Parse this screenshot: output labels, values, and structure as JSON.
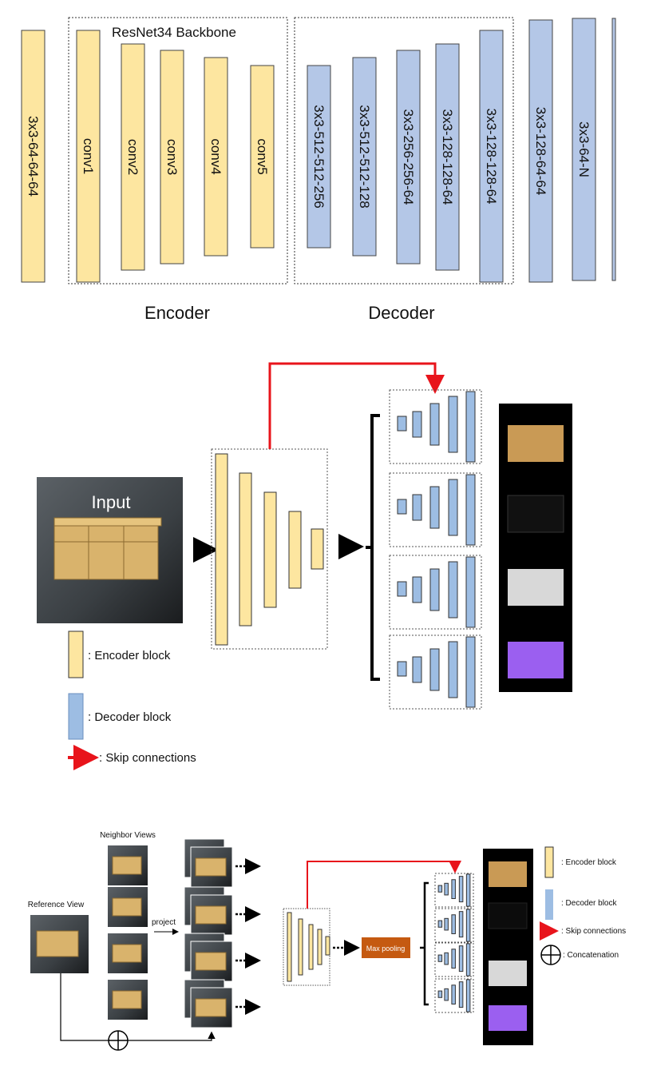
{
  "colors": {
    "encoder": "#fde6a0",
    "decoder": "#b4c7e7",
    "skip": "#e8141b",
    "maxpool": "#c55a11"
  },
  "top": {
    "backbone_title": "ResNet34 Backbone",
    "encoder_label": "Encoder",
    "decoder_label": "Decoder",
    "stem_block": "3x3-64-64-64",
    "encoder_blocks": [
      "conv1",
      "conv2",
      "conv3",
      "conv4",
      "conv5"
    ],
    "decoder_blocks": [
      "3x3-512-512-256",
      "3x3-512-512-128",
      "3x3-256-256-64",
      "3x3-128-128-64",
      "3x3-128-128-64",
      "3x3-128-64-64",
      "3x3-64-N"
    ]
  },
  "middle": {
    "input_label": "Input",
    "legend": {
      "encoder": ": Encoder block",
      "decoder": ": Decoder block",
      "skip": ": Skip connections"
    }
  },
  "bottom": {
    "neighbor_views": "Neighbor Views",
    "reference_view": "Reference View",
    "project": "project",
    "max_pooling": "Max pooling",
    "legend": {
      "encoder": ": Encoder block",
      "decoder": ": Decoder block",
      "skip": ": Skip connections",
      "concat": ": Concatenation"
    }
  }
}
